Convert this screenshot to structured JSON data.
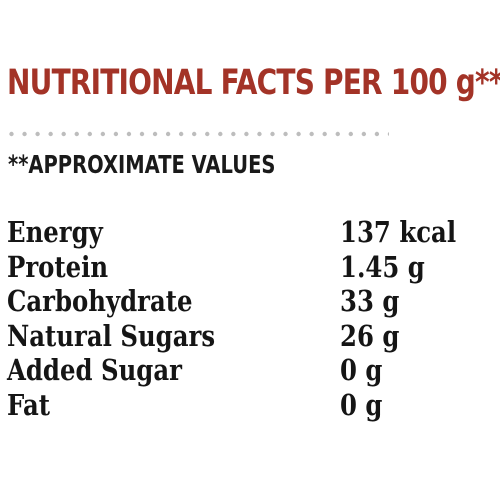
{
  "title": "NUTRITIONAL FACTS PER 100 g**",
  "note": "**APPROXIMATE VALUES",
  "colors": {
    "title": "#a33327",
    "dots": "#bdbdbd",
    "text": "#151515"
  },
  "facts": [
    {
      "label": "Energy",
      "value": "137 kcal"
    },
    {
      "label": "Protein",
      "value": "1.45 g"
    },
    {
      "label": "Carbohydrate",
      "value": "33 g"
    },
    {
      "label": "Natural Sugars",
      "value": "26 g"
    },
    {
      "label": "Added Sugar",
      "value": "0 g"
    },
    {
      "label": "Fat",
      "value": "0 g"
    }
  ]
}
